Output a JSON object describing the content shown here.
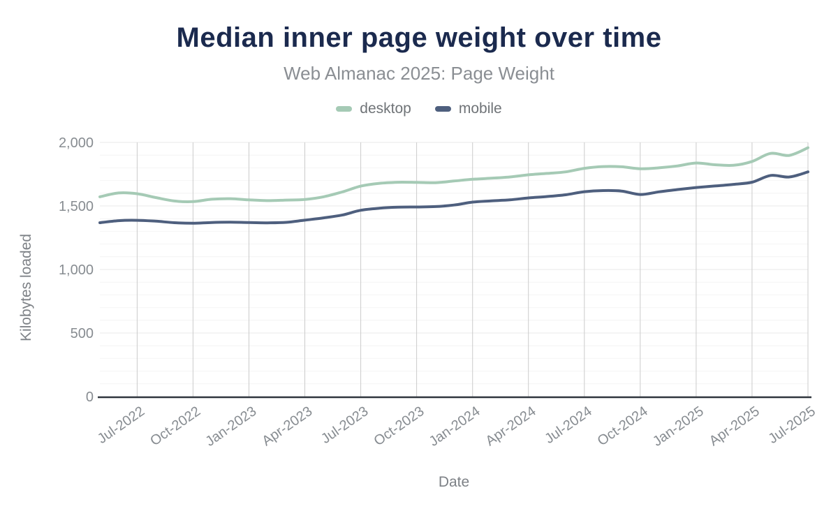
{
  "chart_data": {
    "type": "line",
    "title": "Median inner page weight over time",
    "subtitle": "Web Almanac 2025: Page Weight",
    "xlabel": "Date",
    "ylabel": "Kilobytes loaded",
    "ylim": [
      0,
      2000
    ],
    "y_ticks": [
      0,
      500,
      1000,
      1500,
      2000
    ],
    "y_tick_labels": [
      "0",
      "500",
      "1,000",
      "1,500",
      "2,000"
    ],
    "y_minor_step": 100,
    "x": [
      "May-2022",
      "Jun-2022",
      "Jul-2022",
      "Aug-2022",
      "Sep-2022",
      "Oct-2022",
      "Nov-2022",
      "Dec-2022",
      "Jan-2023",
      "Feb-2023",
      "Mar-2023",
      "Apr-2023",
      "May-2023",
      "Jun-2023",
      "Jul-2023",
      "Aug-2023",
      "Sep-2023",
      "Oct-2023",
      "Nov-2023",
      "Dec-2023",
      "Jan-2024",
      "Feb-2024",
      "Mar-2024",
      "Apr-2024",
      "May-2024",
      "Jun-2024",
      "Jul-2024",
      "Aug-2024",
      "Sep-2024",
      "Oct-2024",
      "Nov-2024",
      "Dec-2024",
      "Jan-2025",
      "Feb-2025",
      "Mar-2025",
      "Apr-2025",
      "May-2025",
      "Jun-2025",
      "Jul-2025"
    ],
    "x_tick_indices": [
      2,
      5,
      8,
      11,
      14,
      17,
      20,
      23,
      26,
      29,
      32,
      35,
      38
    ],
    "x_tick_labels": [
      "Jul-2022",
      "Oct-2022",
      "Jan-2023",
      "Apr-2023",
      "Jul-2023",
      "Oct-2023",
      "Jan-2024",
      "Apr-2024",
      "Jul-2024",
      "Oct-2024",
      "Jan-2025",
      "Apr-2025",
      "Jul-2025"
    ],
    "series": [
      {
        "name": "desktop",
        "color": "#a5cab5",
        "values": [
          1572,
          1602,
          1596,
          1566,
          1539,
          1534,
          1553,
          1557,
          1548,
          1542,
          1546,
          1551,
          1572,
          1610,
          1656,
          1678,
          1686,
          1685,
          1683,
          1696,
          1710,
          1718,
          1728,
          1745,
          1756,
          1768,
          1796,
          1810,
          1808,
          1793,
          1800,
          1815,
          1838,
          1824,
          1820,
          1850,
          1914,
          1898,
          1958
        ]
      },
      {
        "name": "mobile",
        "color": "#4e5f7e",
        "values": [
          1368,
          1384,
          1387,
          1380,
          1368,
          1364,
          1370,
          1372,
          1369,
          1367,
          1371,
          1388,
          1406,
          1428,
          1466,
          1482,
          1490,
          1492,
          1495,
          1507,
          1530,
          1540,
          1548,
          1563,
          1574,
          1588,
          1612,
          1621,
          1617,
          1590,
          1611,
          1629,
          1645,
          1657,
          1670,
          1687,
          1740,
          1728,
          1768
        ]
      }
    ],
    "legend_position": "top",
    "grid": {
      "x_line_color": "#cbcbcb",
      "y_major_color": "#e8e8e8",
      "y_minor_color": "#f4f4f4",
      "axis_line_color": "#30363e"
    },
    "text_colors": {
      "title": "#1b2a4e",
      "subtitle": "#8a8e93",
      "ticks": "#878c91",
      "axis_titles": "#7d8186",
      "legend_labels": "#6f7377"
    }
  }
}
